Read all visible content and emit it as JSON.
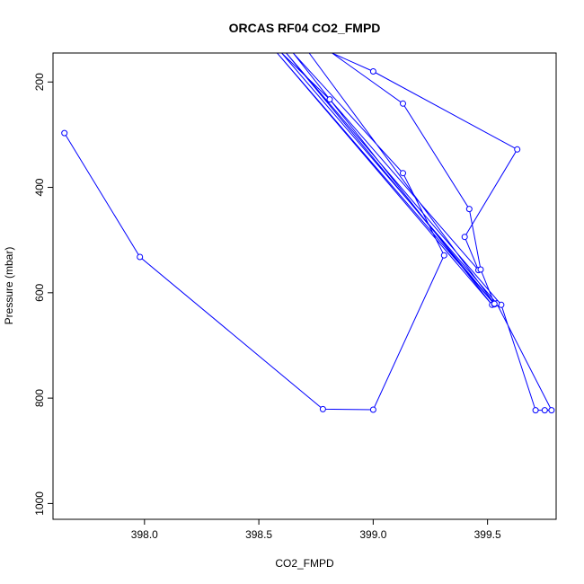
{
  "chart_data": {
    "type": "line",
    "title": "ORCAS RF04 CO2_FMPD",
    "xlabel": "CO2_FMPD",
    "ylabel": "Pressure (mbar)",
    "xlim": [
      397.6,
      399.8
    ],
    "ylim": [
      1030,
      145
    ],
    "y_reversed": true,
    "x_ticks": [
      398.0,
      398.5,
      399.0,
      399.5
    ],
    "x_tick_labels": [
      "398.0",
      "398.5",
      "399.0",
      "399.5"
    ],
    "y_ticks": [
      200,
      400,
      600,
      800,
      1000
    ],
    "y_tick_labels": [
      "200",
      "400",
      "600",
      "800",
      "1000"
    ],
    "grid": false,
    "series": [
      {
        "color": "#0000ff",
        "points": [
          {
            "x": 397.65,
            "y": 297
          },
          {
            "x": 397.98,
            "y": 532
          },
          {
            "x": 398.78,
            "y": 821
          },
          {
            "x": 399.0,
            "y": 822
          },
          {
            "x": 399.31,
            "y": 529
          },
          {
            "x": 399.13,
            "y": 373
          },
          {
            "x": 398.65,
            "y": 145
          },
          {
            "x": 399.52,
            "y": 623
          },
          {
            "x": 398.58,
            "y": 145
          },
          {
            "x": 399.53,
            "y": 622
          },
          {
            "x": 398.62,
            "y": 145
          },
          {
            "x": 399.56,
            "y": 623
          },
          {
            "x": 399.71,
            "y": 823
          },
          {
            "x": 399.75,
            "y": 823
          },
          {
            "x": 399.78,
            "y": 823
          },
          {
            "x": 399.54,
            "y": 620
          },
          {
            "x": 398.6,
            "y": 145
          },
          {
            "x": 398.81,
            "y": 233
          },
          {
            "x": 399.46,
            "y": 557
          },
          {
            "x": 399.4,
            "y": 494
          },
          {
            "x": 399.63,
            "y": 328
          },
          {
            "x": 399.0,
            "y": 180
          },
          {
            "x": 398.82,
            "y": 145
          },
          {
            "x": 399.13,
            "y": 241
          },
          {
            "x": 399.42,
            "y": 441
          },
          {
            "x": 399.47,
            "y": 556
          },
          {
            "x": 399.53,
            "y": 621
          },
          {
            "x": 398.72,
            "y": 145
          }
        ]
      }
    ]
  }
}
